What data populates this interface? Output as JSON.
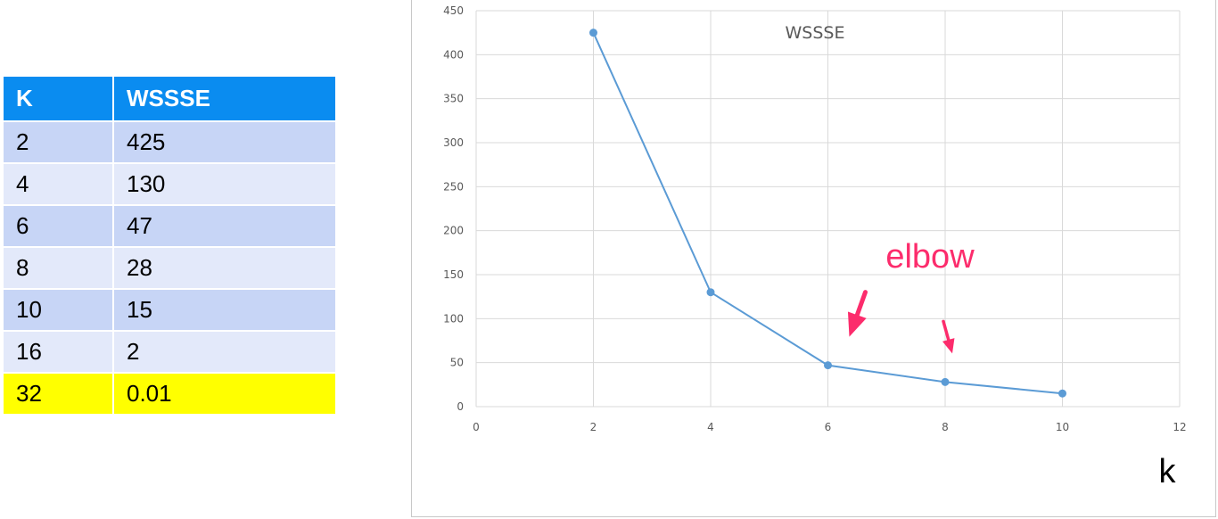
{
  "table": {
    "headers": [
      "K",
      "WSSSE"
    ],
    "rows": [
      [
        "2",
        "425"
      ],
      [
        "4",
        "130"
      ],
      [
        "6",
        "47"
      ],
      [
        "8",
        "28"
      ],
      [
        "10",
        "15"
      ],
      [
        "16",
        "2"
      ],
      [
        "32",
        "0.01"
      ]
    ],
    "highlight_row": 6,
    "colors": {
      "header": "#0a8cf0",
      "row_dark": "#c7d5f6",
      "row_light": "#e3e9fa",
      "highlight": "#ffff00"
    }
  },
  "chart_data": {
    "type": "line",
    "title": "WSSSE",
    "xlabel": "k",
    "ylabel": "",
    "x": [
      2,
      4,
      6,
      8,
      10
    ],
    "series": [
      {
        "values": [
          425,
          130,
          47,
          28,
          15
        ],
        "color": "#5b9bd5"
      }
    ],
    "xlim": [
      0,
      12
    ],
    "ylim": [
      0,
      450
    ],
    "xticks": [
      0,
      2,
      4,
      6,
      8,
      10,
      12
    ],
    "yticks": [
      0,
      50,
      100,
      150,
      200,
      250,
      300,
      350,
      400,
      450
    ],
    "grid": true,
    "annotations": [
      {
        "text": "elbow",
        "color": "#fc2c6c",
        "points_to": [
          [
            6,
            47
          ],
          [
            8,
            28
          ]
        ]
      }
    ]
  }
}
